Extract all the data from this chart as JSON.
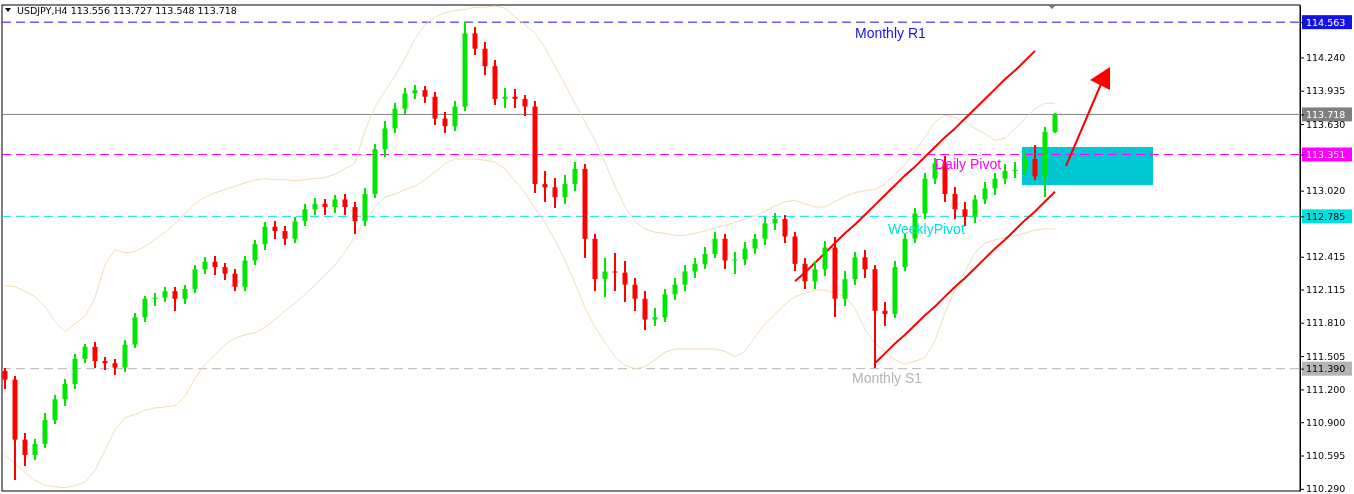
{
  "chart_data": {
    "type": "candlestick",
    "title": "USDJPY,H4  113.556 113.727 113.548 113.718",
    "categories": [
      null,
      null,
      null,
      null,
      null,
      null,
      null,
      null,
      null,
      null,
      null,
      null,
      null,
      null,
      null,
      null,
      null,
      null,
      null,
      null,
      null,
      null,
      null,
      null,
      null,
      null,
      null,
      null,
      null,
      null,
      null,
      null,
      null,
      null,
      null,
      null,
      null,
      null,
      null,
      null,
      null,
      null,
      null,
      null,
      null,
      null,
      null,
      null,
      null,
      null,
      null,
      null,
      null,
      null,
      null,
      null,
      null,
      null,
      null,
      null,
      null,
      null,
      null,
      null,
      null,
      null,
      null,
      null,
      null,
      null,
      null,
      null,
      null,
      null,
      null,
      null,
      null,
      null,
      null,
      null,
      null,
      null,
      null,
      null,
      null,
      null,
      null,
      null,
      null,
      null,
      null,
      null,
      null,
      null,
      null,
      null,
      null,
      null,
      null,
      null,
      null,
      null,
      null,
      null,
      null,
      null
    ],
    "ohlc": [
      [
        111.37,
        111.4,
        111.2,
        111.29
      ],
      [
        111.29,
        111.32,
        110.37,
        110.74
      ],
      [
        110.74,
        110.8,
        110.5,
        110.6
      ],
      [
        110.6,
        110.75,
        110.55,
        110.7
      ],
      [
        110.7,
        110.98,
        110.66,
        110.92
      ],
      [
        110.92,
        111.15,
        110.88,
        111.11
      ],
      [
        111.11,
        111.3,
        111.05,
        111.25
      ],
      [
        111.25,
        111.52,
        111.2,
        111.48
      ],
      [
        111.48,
        111.62,
        111.44,
        111.59
      ],
      [
        111.59,
        111.63,
        111.4,
        111.46
      ],
      [
        111.46,
        111.5,
        111.38,
        111.44
      ],
      [
        111.44,
        111.48,
        111.33,
        111.4
      ],
      [
        111.4,
        111.65,
        111.36,
        111.61
      ],
      [
        111.61,
        111.9,
        111.58,
        111.86
      ],
      [
        111.86,
        112.06,
        111.82,
        112.03
      ],
      [
        112.03,
        112.08,
        111.96,
        112.04
      ],
      [
        112.04,
        112.14,
        112.0,
        112.1
      ],
      [
        112.1,
        112.14,
        111.92,
        112.03
      ],
      [
        112.03,
        112.16,
        111.98,
        112.12
      ],
      [
        112.12,
        112.34,
        112.08,
        112.3
      ],
      [
        112.3,
        112.41,
        112.26,
        112.37
      ],
      [
        112.37,
        112.42,
        112.25,
        112.32
      ],
      [
        112.32,
        112.36,
        112.2,
        112.26
      ],
      [
        112.26,
        112.3,
        112.1,
        112.14
      ],
      [
        112.14,
        112.42,
        112.1,
        112.38
      ],
      [
        112.38,
        112.57,
        112.34,
        112.53
      ],
      [
        112.53,
        112.73,
        112.48,
        112.69
      ],
      [
        112.69,
        112.74,
        112.58,
        112.65
      ],
      [
        112.65,
        112.7,
        112.52,
        112.58
      ],
      [
        112.58,
        112.78,
        112.54,
        112.74
      ],
      [
        112.74,
        112.9,
        112.7,
        112.85
      ],
      [
        112.85,
        112.95,
        112.8,
        112.9
      ],
      [
        112.9,
        112.94,
        112.8,
        112.87
      ],
      [
        112.87,
        112.98,
        112.82,
        112.94
      ],
      [
        112.94,
        112.99,
        112.8,
        112.87
      ],
      [
        112.87,
        112.92,
        112.62,
        112.74
      ],
      [
        112.74,
        113.04,
        112.7,
        112.99
      ],
      [
        112.99,
        113.45,
        112.95,
        113.4
      ],
      [
        113.4,
        113.66,
        113.33,
        113.59
      ],
      [
        113.59,
        113.82,
        113.55,
        113.77
      ],
      [
        113.77,
        113.96,
        113.72,
        113.91
      ],
      [
        113.91,
        113.99,
        113.86,
        113.94
      ],
      [
        113.94,
        113.98,
        113.82,
        113.88
      ],
      [
        113.88,
        113.92,
        113.62,
        113.68
      ],
      [
        113.68,
        113.74,
        113.55,
        113.61
      ],
      [
        113.61,
        113.84,
        113.57,
        113.79
      ],
      [
        113.79,
        114.56,
        113.75,
        114.46
      ],
      [
        114.46,
        114.52,
        114.26,
        114.32
      ],
      [
        114.32,
        114.38,
        114.08,
        114.16
      ],
      [
        114.16,
        114.22,
        113.8,
        113.86
      ],
      [
        113.86,
        113.96,
        113.78,
        113.88
      ],
      [
        113.88,
        113.95,
        113.78,
        113.86
      ],
      [
        113.86,
        113.9,
        113.7,
        113.79
      ],
      [
        113.79,
        113.84,
        113.0,
        113.08
      ],
      [
        113.08,
        113.2,
        112.92,
        113.05
      ],
      [
        113.05,
        113.14,
        112.86,
        112.96
      ],
      [
        112.96,
        113.16,
        112.9,
        113.08
      ],
      [
        113.08,
        113.28,
        113.02,
        113.22
      ],
      [
        113.22,
        113.26,
        112.4,
        112.58
      ],
      [
        112.58,
        112.62,
        112.1,
        112.21
      ],
      [
        112.21,
        112.4,
        112.05,
        112.28
      ],
      [
        112.28,
        112.45,
        112.1,
        112.27
      ],
      [
        112.27,
        112.38,
        112.0,
        112.16
      ],
      [
        112.16,
        112.22,
        111.92,
        112.03
      ],
      [
        112.03,
        112.1,
        111.74,
        111.84
      ],
      [
        111.84,
        111.95,
        111.78,
        111.86
      ],
      [
        111.86,
        112.12,
        111.82,
        112.07
      ],
      [
        112.07,
        112.22,
        112.02,
        112.16
      ],
      [
        112.16,
        112.34,
        112.1,
        112.28
      ],
      [
        112.28,
        112.4,
        112.22,
        112.35
      ],
      [
        112.35,
        112.5,
        112.3,
        112.44
      ],
      [
        112.44,
        112.64,
        112.4,
        112.58
      ],
      [
        112.58,
        112.62,
        112.3,
        112.38
      ],
      [
        112.38,
        112.46,
        112.26,
        112.39
      ],
      [
        112.39,
        112.55,
        112.34,
        112.49
      ],
      [
        112.49,
        112.62,
        112.44,
        112.58
      ],
      [
        112.58,
        112.78,
        112.52,
        112.72
      ],
      [
        112.72,
        112.82,
        112.66,
        112.76
      ],
      [
        112.76,
        112.8,
        112.54,
        112.6
      ],
      [
        112.6,
        112.64,
        112.28,
        112.35
      ],
      [
        112.35,
        112.4,
        112.12,
        112.19
      ],
      [
        112.19,
        112.38,
        112.12,
        112.3
      ],
      [
        112.3,
        112.56,
        112.24,
        112.5
      ],
      [
        112.5,
        112.6,
        111.86,
        112.03
      ],
      [
        112.03,
        112.28,
        111.96,
        112.21
      ],
      [
        112.21,
        112.46,
        112.16,
        112.41
      ],
      [
        112.41,
        112.48,
        112.22,
        112.3
      ],
      [
        112.3,
        112.34,
        111.4,
        111.92
      ],
      [
        111.92,
        112.0,
        111.78,
        111.89
      ],
      [
        111.89,
        112.38,
        111.85,
        112.32
      ],
      [
        112.32,
        112.62,
        112.28,
        112.58
      ],
      [
        112.58,
        112.86,
        112.54,
        112.81
      ],
      [
        112.81,
        113.18,
        112.76,
        113.13
      ],
      [
        113.13,
        113.32,
        113.08,
        113.27
      ],
      [
        113.27,
        113.34,
        112.92,
        112.99
      ],
      [
        112.99,
        113.05,
        112.76,
        112.85
      ],
      [
        112.85,
        112.92,
        112.7,
        112.78
      ],
      [
        112.78,
        112.98,
        112.72,
        112.94
      ],
      [
        112.94,
        113.1,
        112.9,
        113.04
      ],
      [
        113.04,
        113.18,
        112.98,
        113.13
      ],
      [
        113.13,
        113.26,
        113.08,
        113.2
      ],
      [
        113.2,
        113.28,
        113.14,
        113.21
      ],
      [
        113.21,
        113.38,
        113.16,
        113.31
      ],
      [
        113.31,
        113.44,
        113.12,
        113.15
      ],
      [
        113.15,
        113.6,
        112.96,
        113.56
      ],
      [
        113.556,
        113.727,
        113.548,
        113.718
      ]
    ],
    "series": [
      {
        "type": "line",
        "color": "#f3dcb8",
        "values": [
          112.15,
          112.14,
          112.1,
          112.05,
          111.96,
          111.82,
          111.73,
          111.8,
          111.87,
          112.04,
          112.34,
          112.48,
          112.45,
          112.46,
          112.51,
          112.57,
          112.64,
          112.72,
          112.81,
          112.9,
          112.96,
          113.0,
          113.03,
          113.06,
          113.09,
          113.12,
          113.13,
          113.12,
          113.12,
          113.11,
          113.12,
          113.13,
          113.14,
          113.17,
          113.22,
          113.27,
          113.57,
          113.79,
          113.93,
          114.07,
          114.23,
          114.41,
          114.54,
          114.61,
          114.65,
          114.67,
          114.68,
          114.7,
          114.7,
          114.71,
          114.69,
          114.61,
          114.54,
          114.46,
          114.33,
          114.16,
          113.99,
          113.82,
          113.65,
          113.48,
          113.28,
          113.06,
          112.87,
          112.74,
          112.67,
          112.64,
          112.63,
          112.61,
          112.61,
          112.63,
          112.65,
          112.68,
          112.7,
          112.73,
          112.76,
          112.79,
          112.83,
          112.88,
          112.92,
          112.93,
          112.9,
          112.87,
          112.87,
          112.92,
          112.97,
          113.0,
          113.02,
          113.03,
          113.08,
          113.17,
          113.26,
          113.38,
          113.51,
          113.65,
          113.71,
          113.69,
          113.65,
          113.59,
          113.54,
          113.48,
          113.5,
          113.59,
          113.68,
          113.77,
          113.82,
          113.82
        ]
      },
      {
        "type": "line",
        "color": "#f3dcb8",
        "values": [
          110.6,
          110.52,
          110.44,
          110.37,
          110.32,
          110.31,
          110.3,
          110.32,
          110.35,
          110.46,
          110.64,
          110.83,
          110.94,
          110.97,
          111.01,
          111.03,
          111.04,
          111.05,
          111.14,
          111.3,
          111.43,
          111.52,
          111.61,
          111.67,
          111.7,
          111.72,
          111.77,
          111.84,
          111.92,
          111.99,
          112.07,
          112.16,
          112.25,
          112.34,
          112.46,
          112.6,
          112.73,
          112.87,
          112.96,
          112.99,
          113.03,
          113.06,
          113.12,
          113.19,
          113.27,
          113.31,
          113.31,
          113.31,
          113.3,
          113.28,
          113.22,
          113.11,
          113.0,
          112.86,
          112.72,
          112.57,
          112.38,
          112.17,
          111.95,
          111.77,
          111.63,
          111.5,
          111.42,
          111.39,
          111.41,
          111.47,
          111.54,
          111.57,
          111.57,
          111.57,
          111.57,
          111.57,
          111.55,
          111.5,
          111.55,
          111.68,
          111.8,
          111.89,
          111.98,
          112.05,
          112.08,
          112.11,
          112.11,
          112.08,
          112.05,
          111.94,
          111.75,
          111.62,
          111.55,
          111.47,
          111.43,
          111.46,
          111.49,
          111.65,
          111.9,
          112.11,
          112.28,
          112.45,
          112.54,
          112.57,
          112.59,
          112.61,
          112.63,
          112.66,
          112.67,
          112.67
        ]
      },
      {
        "type": "line",
        "color": "#ff0000",
        "values": [
          null,
          null,
          null,
          null,
          null,
          null,
          null,
          null,
          null,
          null,
          null,
          null,
          null,
          null,
          null,
          null,
          null,
          null,
          null,
          null,
          null,
          null,
          null,
          null,
          null,
          null,
          null,
          null,
          null,
          null,
          null,
          null,
          null,
          null,
          null,
          null,
          null,
          null,
          null,
          null,
          null,
          null,
          null,
          null,
          null,
          null,
          null,
          null,
          null,
          null,
          null,
          null,
          null,
          null,
          null,
          null,
          null,
          null,
          null,
          null,
          null,
          null,
          null,
          null,
          null,
          null,
          null,
          null,
          null,
          null,
          null,
          null,
          null,
          null,
          null,
          null,
          null,
          null,
          null,
          112.19,
          112.27,
          112.36,
          112.45,
          112.54,
          112.63,
          112.71,
          112.8,
          112.89,
          112.98,
          113.07,
          113.16,
          113.24,
          113.33,
          113.42,
          113.51,
          113.59,
          113.68,
          113.77,
          113.86,
          113.95,
          114.04,
          114.12,
          114.21,
          114.3,
          null,
          null
        ]
      },
      {
        "type": "line",
        "color": "#ff0000",
        "values": [
          null,
          null,
          null,
          null,
          null,
          null,
          null,
          null,
          null,
          null,
          null,
          null,
          null,
          null,
          null,
          null,
          null,
          null,
          null,
          null,
          null,
          null,
          null,
          null,
          null,
          null,
          null,
          null,
          null,
          null,
          null,
          null,
          null,
          null,
          null,
          null,
          null,
          null,
          null,
          null,
          null,
          null,
          null,
          null,
          null,
          null,
          null,
          null,
          null,
          null,
          null,
          null,
          null,
          null,
          null,
          null,
          null,
          null,
          null,
          null,
          null,
          null,
          null,
          null,
          null,
          null,
          null,
          null,
          null,
          null,
          null,
          null,
          null,
          null,
          null,
          null,
          null,
          null,
          null,
          null,
          null,
          null,
          null,
          null,
          null,
          null,
          null,
          111.44,
          111.53,
          111.62,
          111.7,
          111.79,
          111.88,
          111.96,
          112.05,
          112.14,
          112.22,
          112.31,
          112.4,
          112.49,
          112.57,
          112.66,
          112.75,
          112.83,
          112.92,
          113.01
        ]
      }
    ],
    "ylim": [
      110.27,
      114.72
    ],
    "yticks": [
      {
        "value": 114.563,
        "label": "114.563"
      },
      {
        "value": 113.718,
        "label": "113.718"
      },
      {
        "value": 113.351,
        "label": "113.351"
      },
      {
        "value": 112.785,
        "label": "112.785"
      },
      {
        "value": 111.39,
        "label": "111.390"
      },
      {
        "value": 114.24,
        "label": "114.240"
      },
      {
        "value": 113.935,
        "label": "113.935"
      },
      {
        "value": 113.63,
        "label": "113.630"
      },
      {
        "value": 113.02,
        "label": "113.020"
      },
      {
        "value": 112.415,
        "label": "112.415"
      },
      {
        "value": 112.115,
        "label": "112.115"
      },
      {
        "value": 111.81,
        "label": "111.810"
      },
      {
        "value": 111.505,
        "label": "111.505"
      },
      {
        "value": 111.2,
        "label": "111.200"
      },
      {
        "value": 110.9,
        "label": "110.900"
      },
      {
        "value": 110.595,
        "label": "110.595"
      },
      {
        "value": 110.29,
        "label": "110.290"
      }
    ],
    "tick_labels": "y",
    "grid": false,
    "ref_lines": [
      {
        "axis": "y",
        "value": 114.563,
        "label": "Monthly R1",
        "color": "#1414e6",
        "line_style": "dashed"
      },
      {
        "axis": "y",
        "value": 113.718,
        "label": null,
        "color": "#808080",
        "line_style": "solid"
      },
      {
        "axis": "y",
        "value": 113.351,
        "label": "Daily Pivot",
        "color": "#ff00ff",
        "line_style": "dashed"
      },
      {
        "axis": "y",
        "value": 112.785,
        "label": "WeeklyPivot",
        "color": "#00e0e0",
        "line_style": "dashed"
      },
      {
        "axis": "y",
        "value": 111.39,
        "label": "Monthly S1",
        "color": "#b4b4b4",
        "line_style": "dashed"
      }
    ]
  }
}
